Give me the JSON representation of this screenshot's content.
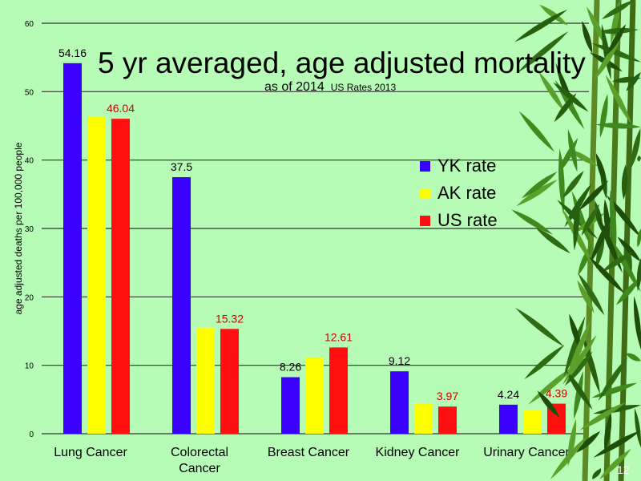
{
  "slide_number": "12",
  "chart_data": {
    "type": "bar",
    "title": "5 yr averaged, age adjusted mortality",
    "subtitle": "as of 2014",
    "subtitle_note": "US Rates 2013",
    "xlabel": "",
    "ylabel": "age adjusted deaths per 100,000 people",
    "ylim": [
      0,
      60
    ],
    "yticks": [
      0,
      10,
      20,
      30,
      40,
      50,
      60
    ],
    "grid": true,
    "legend_position": "right",
    "categories": [
      "Lung Cancer",
      "Colorectal Cancer",
      "Breast Cancer",
      "Kidney Cancer",
      "Urinary Cancer"
    ],
    "series": [
      {
        "name": "YK rate",
        "color": "#3a00ff",
        "values": [
          54.16,
          37.5,
          8.26,
          9.12,
          4.24
        ],
        "labels": [
          "54.16",
          "37.5",
          "8.26",
          "9.12",
          "4.24"
        ],
        "label_color": "#000000"
      },
      {
        "name": "AK rate",
        "color": "#ffff00",
        "values": [
          46.4,
          15.5,
          11.1,
          4.4,
          3.5
        ],
        "labels": [
          "",
          "",
          "",
          "",
          ""
        ],
        "label_color": "#000000"
      },
      {
        "name": "US rate",
        "color": "#ff1010",
        "values": [
          46.04,
          15.32,
          12.61,
          3.97,
          4.39
        ],
        "labels": [
          "46.04",
          "15.32",
          "12.61",
          "3.97",
          "4.39"
        ],
        "label_color": "#cc0000"
      }
    ]
  }
}
